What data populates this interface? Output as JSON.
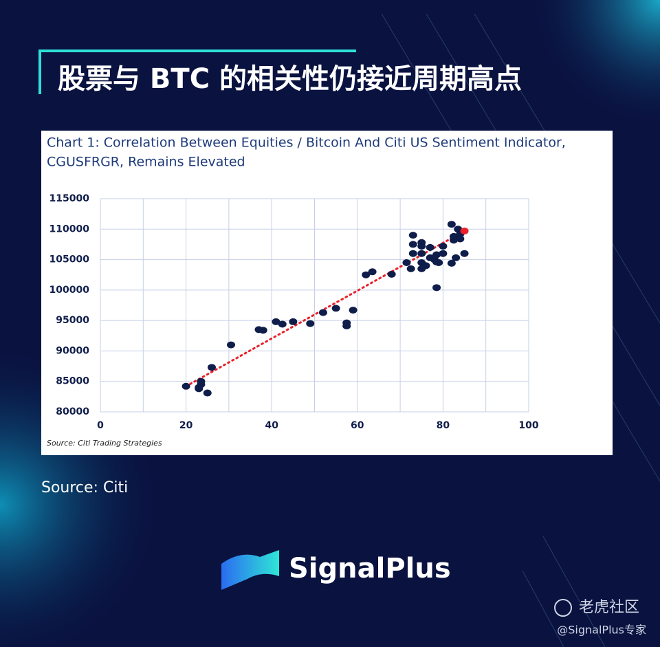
{
  "header": {
    "title": "股票与 BTC 的相关性仍接近周期高点"
  },
  "chart_data": {
    "type": "scatter",
    "title": "Chart 1: Correlation Between Equities / Bitcoin And Citi US Sentiment Indicator,",
    "subtitle": "CGUSFRGR, Remains Elevated",
    "note": "Source: Citi Trading Strategies",
    "xlim": [
      0,
      100
    ],
    "ylim": [
      80000,
      115000
    ],
    "xticks": [
      0,
      20,
      40,
      60,
      80,
      100
    ],
    "xminor": [
      10,
      30,
      50,
      70,
      90
    ],
    "yticks": [
      80000,
      85000,
      90000,
      95000,
      100000,
      105000,
      110000,
      115000
    ],
    "grid": true,
    "series": [
      {
        "color": "#0f1d4a",
        "x": [
          20,
          23,
          23.5,
          23.5,
          23,
          25,
          26,
          30.5,
          37,
          38,
          41,
          42.5,
          45,
          49,
          52,
          55,
          57.5,
          57.5,
          59,
          62,
          63.5,
          68,
          71.5,
          72.5,
          73,
          73,
          73,
          75,
          75,
          75,
          75,
          75,
          76,
          77,
          77,
          78,
          78.5,
          78.5,
          79,
          78.5,
          80,
          80,
          82,
          82.5,
          82.5,
          82,
          83,
          83.5,
          84,
          84,
          85
        ],
        "y": [
          84200,
          84000,
          84500,
          85000,
          83800,
          83100,
          87300,
          91000,
          93500,
          93400,
          94800,
          94400,
          94800,
          94500,
          96300,
          97000,
          94100,
          94600,
          96700,
          102500,
          103000,
          102600,
          104500,
          103500,
          109000,
          107500,
          106000,
          107800,
          107200,
          106000,
          104500,
          103500,
          104000,
          107000,
          105300,
          105000,
          105800,
          104600,
          104500,
          100400,
          107200,
          106000,
          110800,
          108200,
          108800,
          104400,
          105300,
          110000,
          108400,
          109200,
          106000
        ]
      },
      {
        "color": "#e8212a",
        "x": [
          85
        ],
        "y": [
          109700
        ]
      }
    ],
    "trend": {
      "color": "#e8212a",
      "x": [
        20,
        85
      ],
      "y": [
        84200,
        109700
      ]
    }
  },
  "footer": {
    "source": "Source: Citi",
    "brand": "SignalPlus",
    "watermark": "老虎社区",
    "handle": "@SignalPlus专家"
  }
}
